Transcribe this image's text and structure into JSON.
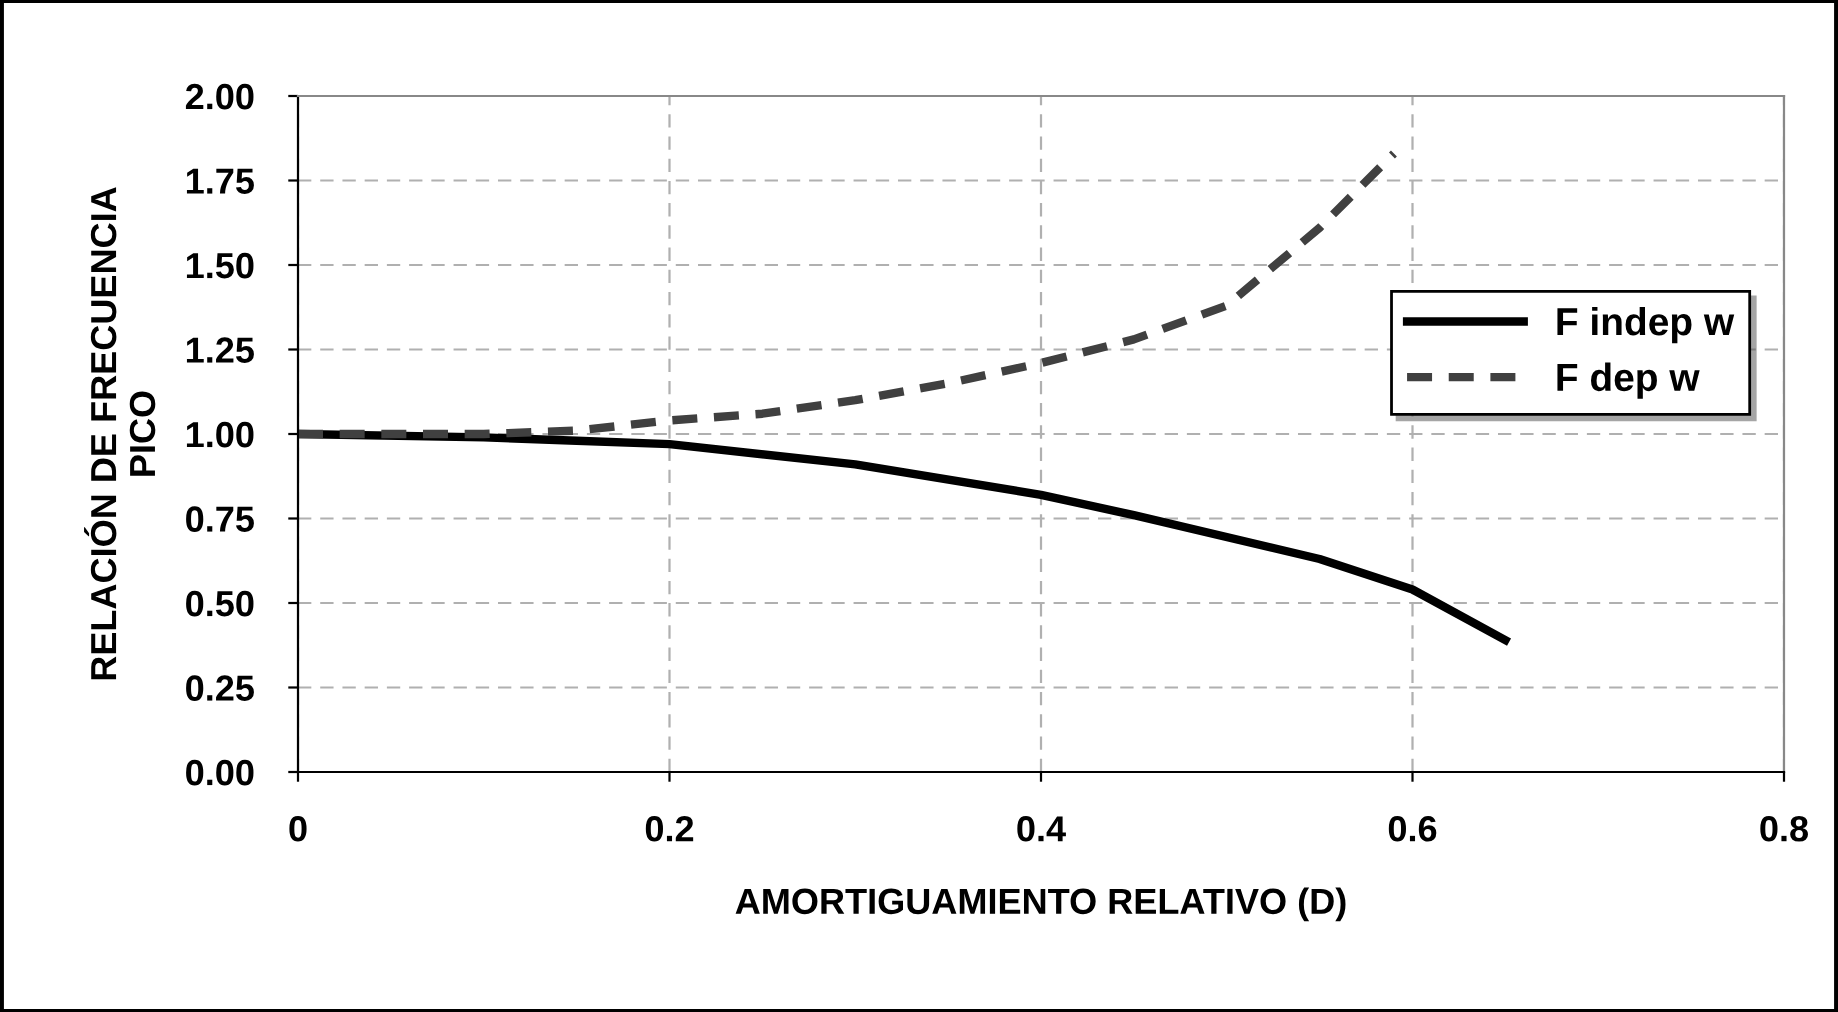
{
  "chart_data": {
    "type": "line",
    "xlabel": "AMORTIGUAMIENTO RELATIVO (D)",
    "ylabel": "RELACIÓN DE FRECUENCIA\nPICO",
    "xlim": [
      0,
      0.8
    ],
    "xticks": [
      0,
      0.2,
      0.4,
      0.6,
      0.8
    ],
    "ylim": [
      0,
      2.0
    ],
    "yticks": [
      {
        "value": 0,
        "label": "0.00"
      },
      {
        "value": 0.25,
        "label": "0.25"
      },
      {
        "value": 0.5,
        "label": "0.50"
      },
      {
        "value": 0.75,
        "label": "0.75"
      },
      {
        "value": 1.0,
        "label": "1.00"
      },
      {
        "value": 1.25,
        "label": "1.25"
      },
      {
        "value": 1.5,
        "label": "1.50"
      },
      {
        "value": 1.75,
        "label": "1.75"
      },
      {
        "value": 2.0,
        "label": "2.00"
      }
    ],
    "grid": true,
    "legend": "right",
    "series": [
      {
        "name": "F indep w",
        "color": "#000000",
        "line_style": "solid",
        "x": [
          0,
          0.1,
          0.15,
          0.2,
          0.3,
          0.4,
          0.45,
          0.55,
          0.6,
          0.65
        ],
        "values": [
          1.0,
          0.99,
          0.98,
          0.97,
          0.91,
          0.82,
          0.76,
          0.63,
          0.54,
          0.39
        ]
      },
      {
        "name": "F dep w",
        "color": "#404040",
        "line_style": "dashed",
        "x": [
          0,
          0.1,
          0.15,
          0.2,
          0.25,
          0.3,
          0.35,
          0.4,
          0.45,
          0.5,
          0.55,
          0.59
        ],
        "values": [
          1.0,
          1.0,
          1.01,
          1.04,
          1.06,
          1.1,
          1.15,
          1.21,
          1.28,
          1.38,
          1.61,
          1.83
        ]
      }
    ]
  }
}
